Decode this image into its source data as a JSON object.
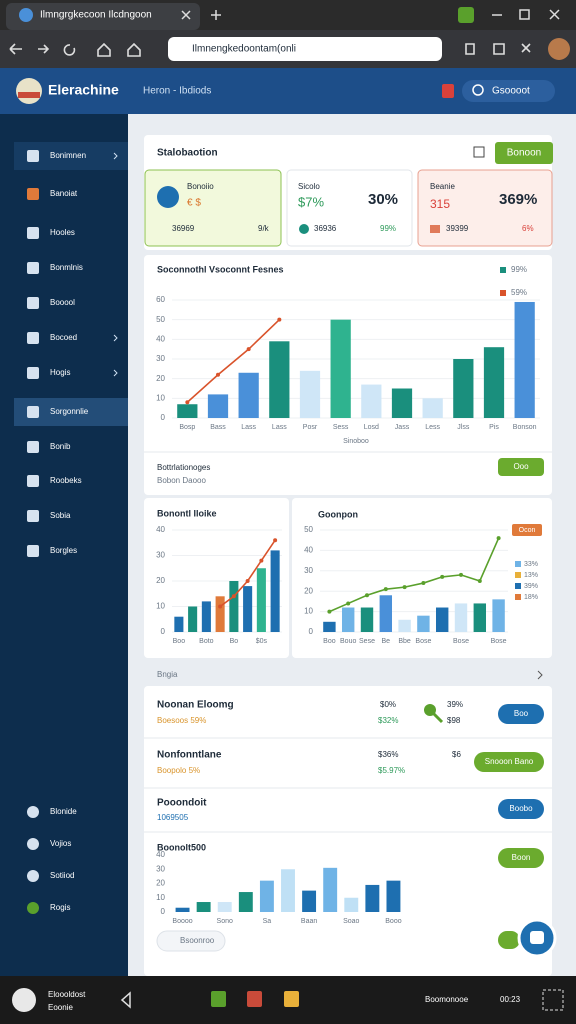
{
  "browser": {
    "tab_title": "Ilmngrgkecoon Ilcdngoon",
    "address": "Ilmnengkedoontam(onli"
  },
  "header": {
    "logo": "Elerachine",
    "nav": "Heron - Ibdiods",
    "search": "Gsoooot"
  },
  "sidebar": {
    "items": [
      "Bonimnen",
      "Banoiat",
      "Hooles",
      "Bonmlnis",
      "Booool",
      "Bocoed",
      "Hogis",
      "Sorgonnlie",
      "Bonib",
      "Roobeks",
      "Sobia",
      "Borgles"
    ],
    "bottom_items": [
      "Blonide",
      "Vojios",
      "Sotiiod",
      "Rogis"
    ]
  },
  "summary": {
    "title": "Stalobaotion",
    "button": "Bonoon",
    "cards": [
      {
        "title": "Bonoiio",
        "value": "€ $",
        "footer_left": "36969",
        "footer_right": "9/k"
      },
      {
        "title": "Sicolo",
        "value": "$7%",
        "big": "30%",
        "footer_left": "36936",
        "footer_right": "99%"
      },
      {
        "title": "Beanie",
        "value": "315",
        "big": "369%",
        "footer_left": "39399",
        "footer_right": "6%"
      }
    ]
  },
  "insights": {
    "title": "Bottrlationoges",
    "subtitle": "Bobon Daooo",
    "button": "Ooo"
  },
  "list": {
    "title": "Bngia",
    "rows": [
      {
        "title": "Noonan Eloomg",
        "subtitle": "Boesoos 59%",
        "col1": "$0%",
        "col1_sub": "$32%",
        "col2": "39%",
        "col2_sub": "$98",
        "button": "Boo"
      },
      {
        "title": "Nonfonntlane",
        "subtitle": "Boopolo 5%",
        "col1": "$36%",
        "col1_sub": "$5.97%",
        "col2": "$6",
        "button": "Snooon Bano"
      },
      {
        "title": "Pooondoit",
        "subtitle": "1069505",
        "button": "Boobo"
      }
    ],
    "chart_button": "Boon",
    "bottom_pill": "Bsoonroo"
  },
  "taskbar": {
    "user": "Eloooldost",
    "subtitle": "Eoonie",
    "status": "Boomonooe",
    "time": "00:23"
  },
  "chart_data": [
    {
      "type": "bar",
      "title": "Soconnothl Vsoconnt Fesnes",
      "x_label": "Sinoboo",
      "categories": [
        "Bosp",
        "Bass",
        "Lass",
        "Lass",
        "Posr",
        "Sess",
        "Losd",
        "Jass",
        "Less",
        "Jlss",
        "Pis",
        "Bonson"
      ],
      "series": [
        {
          "name": "99%",
          "type": "bar",
          "color": "#1a8f7d",
          "values": [
            7,
            12,
            23,
            39,
            24,
            50,
            17,
            15,
            10,
            30,
            36,
            59
          ],
          "bar_colors": [
            "#1a8f7d",
            "#4a90d9",
            "#4a90d9",
            "#1a8f7d",
            "#cfe6f7",
            "#2fb38f",
            "#cfe6f7",
            "#1a8f7d",
            "#cfe6f7",
            "#1a8f7d",
            "#1a8f7d",
            "#4a90d9"
          ]
        },
        {
          "name": "59%",
          "type": "line",
          "color": "#d9532b",
          "values": [
            8,
            22,
            35,
            50,
            null,
            null,
            null,
            null,
            null,
            null,
            null,
            null
          ]
        }
      ],
      "ylim": [
        0,
        60
      ],
      "yticks": [
        0,
        10,
        20,
        30,
        40,
        50,
        60
      ],
      "grid": true,
      "legend": "top-right"
    },
    {
      "type": "bar",
      "title": "Bonontl Iloike",
      "categories": [
        "Boo",
        null,
        "Boto",
        null,
        "Bo",
        null,
        "$0s",
        null
      ],
      "series": [
        {
          "type": "bar",
          "color": "#1e6fb0",
          "values": [
            6,
            10,
            12,
            14,
            20,
            18,
            25,
            32
          ],
          "bar_colors": [
            "#1e6fb0",
            "#1a8f7d",
            "#1e6fb0",
            "#e07a3a",
            "#1a8f7d",
            "#1e6fb0",
            "#2fb38f",
            "#1e6fb0"
          ]
        },
        {
          "type": "line",
          "color": "#d9532b",
          "values": [
            null,
            null,
            null,
            10,
            14,
            20,
            28,
            36
          ]
        }
      ],
      "ylim": [
        0,
        40
      ],
      "yticks": [
        0,
        10,
        20,
        30,
        40
      ],
      "grid": true
    },
    {
      "type": "bar",
      "title": "Goonpon",
      "categories": [
        "Boo",
        "Bouo",
        "Sese",
        "Be",
        "Bbe",
        "Bose",
        null,
        "Bose",
        null,
        "Bose"
      ],
      "series": [
        {
          "type": "bar",
          "color": "#4a90d9",
          "values": [
            5,
            12,
            12,
            18,
            6,
            8,
            12,
            14,
            14,
            16
          ],
          "bar_colors": [
            "#1e6fb0",
            "#6fb3e6",
            "#1a8f7d",
            "#4a90d9",
            "#cfe6f7",
            "#6fb3e6",
            "#1e6fb0",
            "#cfe6f7",
            "#1a8f7d",
            "#6fb3e6"
          ]
        },
        {
          "type": "line",
          "color": "#5aa02c",
          "values": [
            10,
            14,
            18,
            21,
            22,
            24,
            27,
            28,
            25,
            46
          ]
        }
      ],
      "legend_button": "Ocon",
      "legend_items": [
        {
          "label": "33%",
          "color": "#6fb3e6"
        },
        {
          "label": "13%",
          "color": "#e8b03a"
        },
        {
          "label": "39%",
          "color": "#1e6fb0"
        },
        {
          "label": "18%",
          "color": "#e07a3a"
        }
      ],
      "ylim": [
        0,
        50
      ],
      "yticks": [
        0,
        10,
        20,
        30,
        40,
        50
      ],
      "grid": true
    },
    {
      "type": "bar",
      "title": "Boonolt500",
      "categories": [
        "Boooo",
        null,
        "Sono",
        null,
        "Sa",
        null,
        "Baan",
        null,
        "Soao",
        null,
        "Booo"
      ],
      "series": [
        {
          "type": "bar",
          "color": "#1e6fb0",
          "values": [
            3,
            7,
            7,
            14,
            22,
            30,
            15,
            31,
            10,
            19,
            22
          ],
          "bar_colors": [
            "#1e6fb0",
            "#1a8f7d",
            "#cfe6f7",
            "#1a8f7d",
            "#6fb3e6",
            "#bfe0f5",
            "#1e6fb0",
            "#6fb3e6",
            "#bfe0f5",
            "#1e6fb0",
            "#1e6fb0"
          ]
        }
      ],
      "ylim": [
        0,
        40
      ],
      "yticks": [
        0,
        10,
        20,
        30,
        40
      ],
      "grid": false
    }
  ]
}
